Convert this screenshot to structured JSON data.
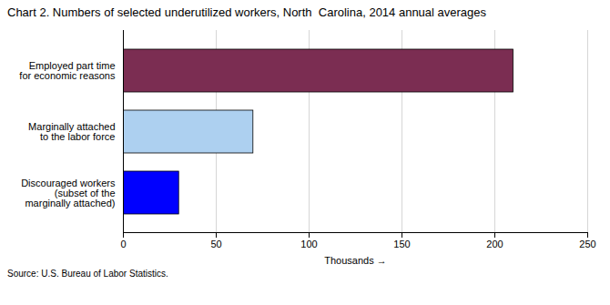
{
  "chart_data": {
    "type": "bar",
    "orientation": "horizontal",
    "title": "Chart 2. Numbers of selected underutilized workers, North  Carolina, 2014 annual averages",
    "categories": [
      "Employed part time\nfor economic reasons",
      "Marginally attached\nto the labor force",
      "Discouraged workers\n(subset of the\nmarginally attached)"
    ],
    "values": [
      210,
      70,
      30
    ],
    "colors": [
      "#7b2d52",
      "#add0f0",
      "#0000ff"
    ],
    "xlabel": "Thousands",
    "xlim": [
      0,
      250
    ],
    "xticks": [
      0,
      50,
      100,
      150,
      200,
      250
    ],
    "grid": true,
    "source": "Source: U.S. Bureau of Labor Statistics."
  }
}
